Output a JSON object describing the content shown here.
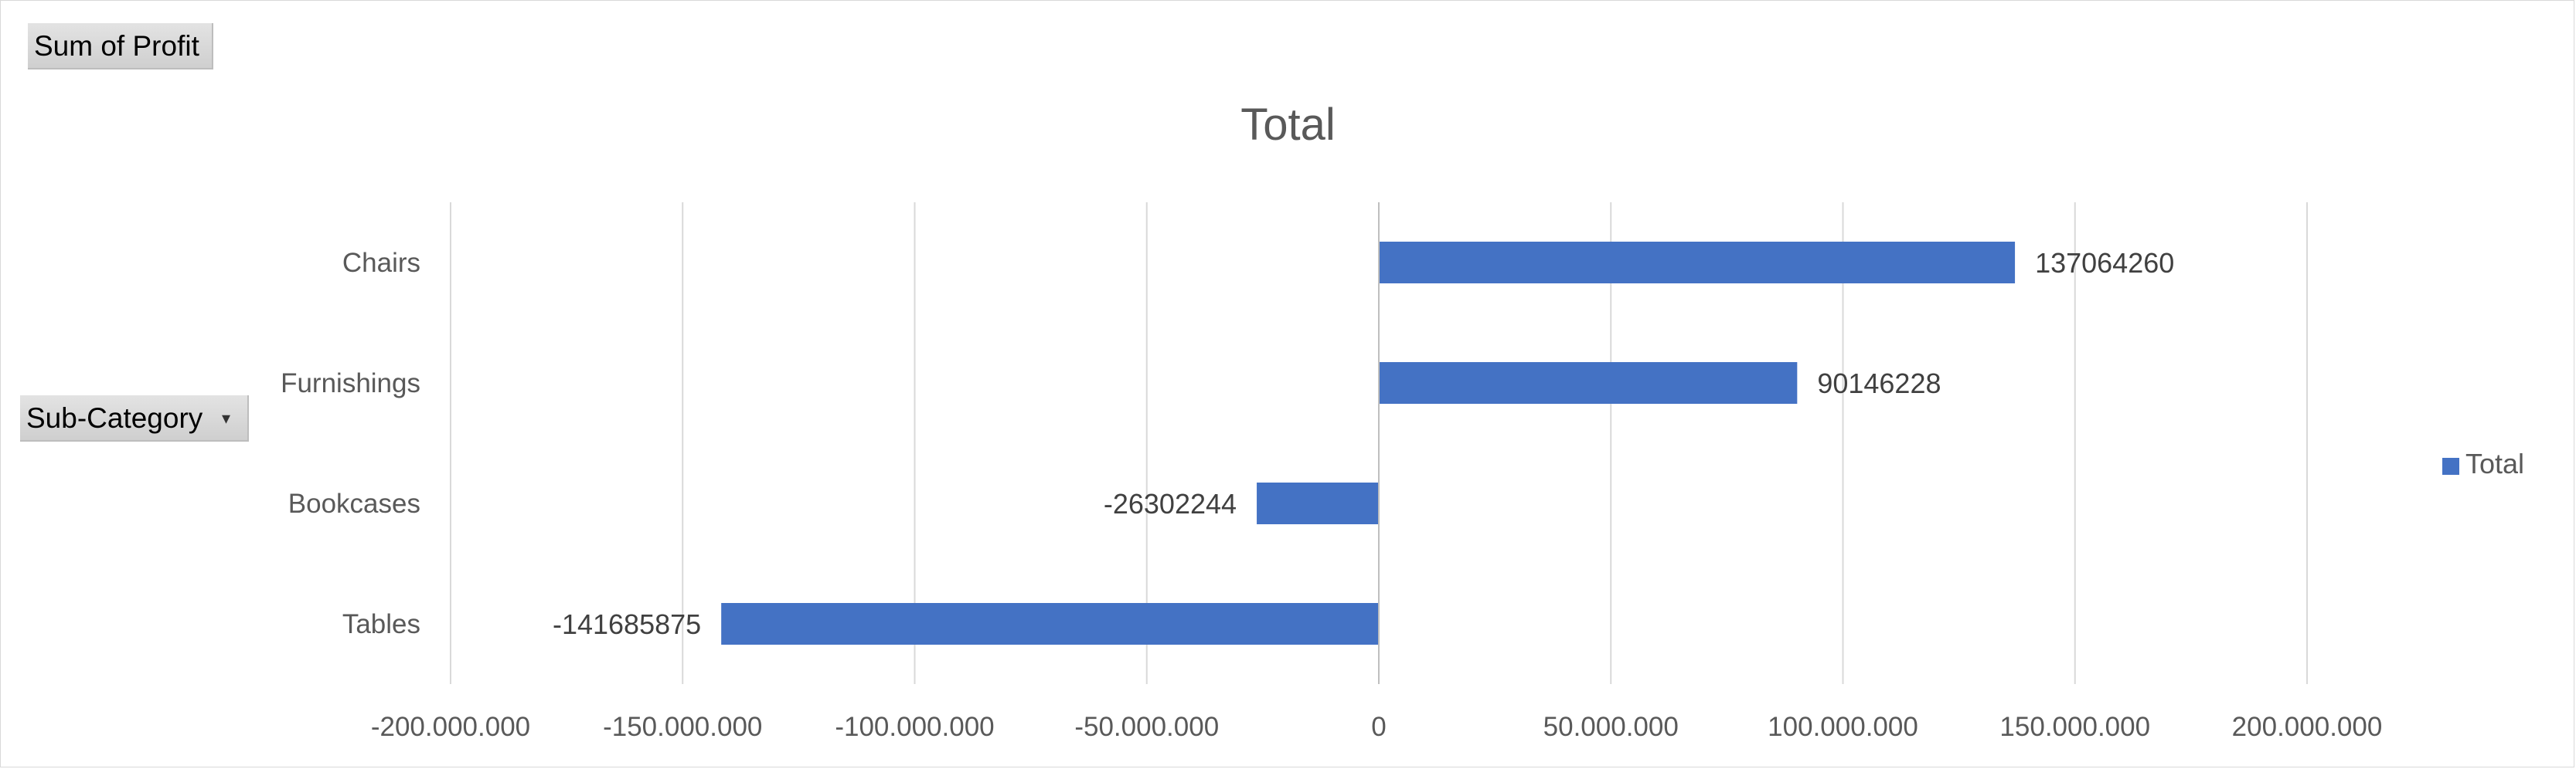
{
  "pivot": {
    "value_field": "Sum of Profit",
    "row_field": "Sub-Category"
  },
  "colors": {
    "bar": "#4472C4",
    "grid": "#d9d9d9"
  },
  "chart_data": {
    "type": "bar",
    "orientation": "horizontal",
    "title": "Total",
    "categories": [
      "Chairs",
      "Furnishings",
      "Bookcases",
      "Tables"
    ],
    "series": [
      {
        "name": "Total",
        "values": [
          137064260,
          90146228,
          -26302244,
          -141685875
        ]
      }
    ],
    "data_labels": [
      "137064260",
      "90146228",
      "-26302244",
      "-141685875"
    ],
    "xlim": [
      -200000000,
      200000000
    ],
    "xticks": [
      -200000000,
      -150000000,
      -100000000,
      -50000000,
      0,
      50000000,
      100000000,
      150000000,
      200000000
    ],
    "xtick_labels": [
      "-200.000.000",
      "-150.000.000",
      "-100.000.000",
      "-50.000.000",
      "0",
      "50.000.000",
      "100.000.000",
      "150.000.000",
      "200.000.000"
    ],
    "grid": true,
    "legend_position": "right"
  }
}
